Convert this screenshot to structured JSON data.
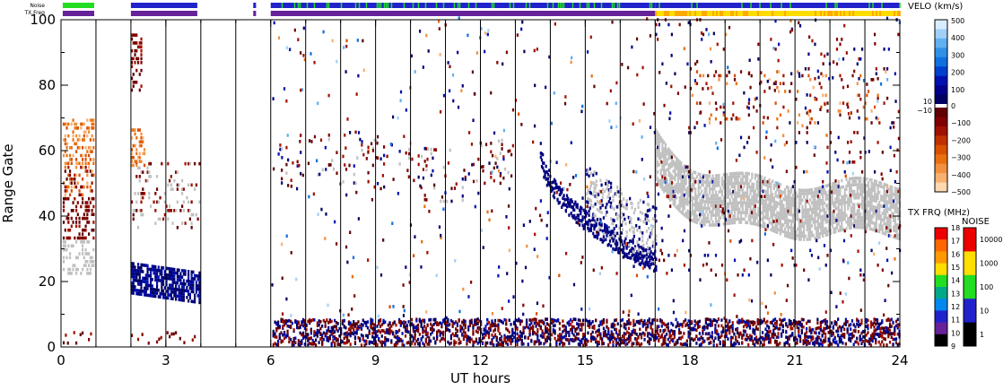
{
  "chart_data": {
    "type": "heatmap",
    "title": "",
    "xlabel": "UT hours",
    "ylabel": "Range Gate",
    "xlim": [
      0,
      24
    ],
    "ylim": [
      0,
      100
    ],
    "x_ticks": [
      0,
      3,
      6,
      9,
      12,
      15,
      18,
      21,
      24
    ],
    "y_ticks": [
      0,
      20,
      40,
      60,
      80,
      100
    ],
    "x_tick_labels": [
      "0",
      "3",
      "6",
      "9",
      "12",
      "15",
      "18",
      "21",
      "24"
    ],
    "y_tick_labels": [
      "0",
      "20",
      "40",
      "60",
      "80",
      "100"
    ],
    "scan_boundaries_ut": [
      1.0,
      2.0,
      3.0,
      4.0,
      5.0,
      6.0,
      7.0,
      8.0,
      9.0,
      10.0,
      11.0,
      12.0,
      13.0,
      14.0,
      15.0,
      16.0,
      17.0,
      18.0,
      19.0,
      20.0,
      21.0,
      22.0,
      23.0
    ],
    "strip_labels": {
      "noise": "Noise",
      "txfreq": "TX Freq"
    },
    "noise_strip": [
      {
        "start": 0.05,
        "end": 0.95,
        "color": "#22dd22"
      },
      {
        "start": 2.0,
        "end": 3.9,
        "color": "#2222cc"
      },
      {
        "start": 5.5,
        "end": 5.58,
        "color": "#2222cc"
      },
      {
        "start": 6.0,
        "end": 17.0,
        "color": "#2222cc",
        "mixed": "#22dd22"
      },
      {
        "start": 17.0,
        "end": 24.0,
        "color": "#2222cc",
        "mixed": "#22dd22",
        "sparse": true
      }
    ],
    "txfreq_strip": [
      {
        "start": 0.05,
        "end": 0.95,
        "color": "#662299"
      },
      {
        "start": 2.0,
        "end": 3.9,
        "color": "#662299"
      },
      {
        "start": 5.5,
        "end": 5.58,
        "color": "#662299"
      },
      {
        "start": 6.0,
        "end": 17.0,
        "color": "#662299"
      },
      {
        "start": 17.0,
        "end": 24.0,
        "color": "#ffdd00",
        "mixed": "#ff9900"
      }
    ],
    "ground_scatter_color": "#c0c0c0",
    "features": {
      "near_range_echoes": {
        "ut": [
          6.0,
          24.0
        ],
        "gates": [
          0,
          8
        ],
        "colors": [
          "#000080",
          "#800000"
        ]
      },
      "ground_scatter_band": {
        "ut": [
          17.0,
          24.0
        ],
        "gates_center": 42,
        "gates_halfwidth": 8
      },
      "descending_trace": {
        "ut": [
          13.7,
          17.0
        ],
        "gates_start": 60,
        "gates_end": 25,
        "color": "#000080"
      }
    },
    "velocity_colorbar": {
      "label": "VELO (km/s)",
      "tick_labels": [
        "500",
        "400",
        "300",
        "200",
        "100",
        "0",
        "10",
        "−10",
        "−100",
        "−200",
        "−300",
        "−400",
        "−500"
      ],
      "positive_colors": [
        "#000060",
        "#00008c",
        "#0010b0",
        "#0040d0",
        "#1070e0",
        "#3090e8",
        "#60b0f0",
        "#a0d0f8",
        "#d8ecff"
      ],
      "negative_colors": [
        "#600000",
        "#800000",
        "#a01000",
        "#c03000",
        "#d85000",
        "#e87010",
        "#f09040",
        "#f8b070",
        "#ffd8b0"
      ]
    },
    "txfreq_colorbar": {
      "label": "TX FRQ (MHz)",
      "tick_labels": [
        "18",
        "17",
        "16",
        "15",
        "14",
        "13",
        "12",
        "11",
        "10",
        "9"
      ],
      "colors": [
        "#ee0000",
        "#ff6600",
        "#ff9900",
        "#ffdd00",
        "#22dd22",
        "#00aa88",
        "#0088ee",
        "#2222cc",
        "#662299",
        "#000000"
      ]
    },
    "noise_colorbar": {
      "label": "NOISE",
      "tick_labels": [
        "10000",
        "1000",
        "100",
        "10",
        "1"
      ],
      "colors": [
        "#ee0000",
        "#ffdd00",
        "#22dd22",
        "#2222cc",
        "#000000"
      ]
    }
  }
}
